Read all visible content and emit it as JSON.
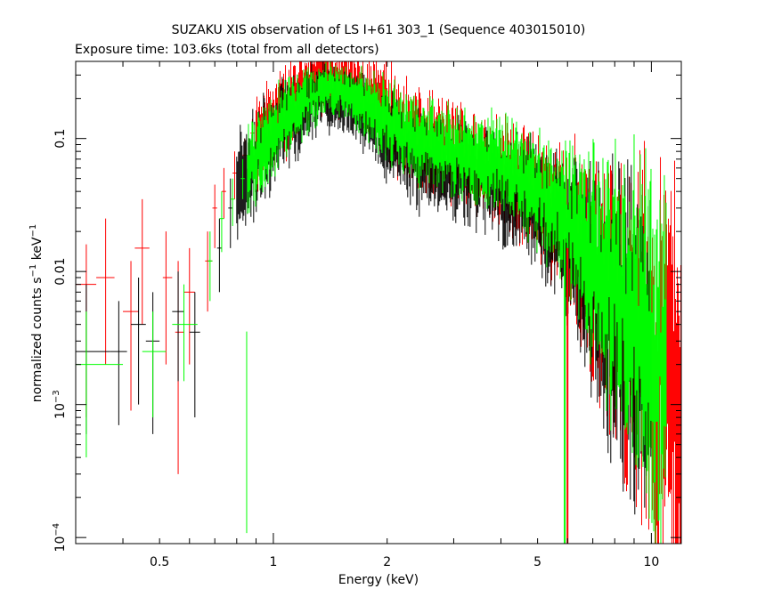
{
  "chart_data": {
    "type": "scatter",
    "title": "SUZAKU XIS observation of LS I+61 303_1 (Sequence 403015010)",
    "subtitle": "Exposure time: 103.6ks (total from all detectors)",
    "xlabel": "Energy (keV)",
    "ylabel": "normalized counts s",
    "ylabel_sup1": "−1",
    "ylabel_mid": " keV",
    "ylabel_sup2": "−1",
    "xscale": "log",
    "yscale": "log",
    "xlim": [
      0.3,
      12
    ],
    "ylim": [
      9e-05,
      0.38
    ],
    "grid": false,
    "legend": "none",
    "x_ticks": [
      {
        "value": 0.5,
        "label": "0.5"
      },
      {
        "value": 1,
        "label": "1"
      },
      {
        "value": 2,
        "label": "2"
      },
      {
        "value": 5,
        "label": "5"
      },
      {
        "value": 10,
        "label": "10"
      }
    ],
    "y_ticks": [
      {
        "value": 0.1,
        "label": "0.1"
      },
      {
        "value": 0.01,
        "label": "0.01"
      },
      {
        "value": 0.001,
        "label": "10",
        "sup": "−3"
      },
      {
        "value": 0.0001,
        "label": "10",
        "sup": "−4"
      }
    ],
    "series": [
      {
        "color": "#ff0000",
        "points": [
          {
            "x": 0.32,
            "y": 0.008,
            "xerr": [
              0.3,
              0.34
            ],
            "yerr": [
              0.0008,
              0.016
            ]
          },
          {
            "x": 0.36,
            "y": 0.009,
            "xerr": [
              0.34,
              0.38
            ],
            "yerr": [
              0.002,
              0.025
            ]
          },
          {
            "x": 0.42,
            "y": 0.005,
            "xerr": [
              0.4,
              0.44
            ],
            "yerr": [
              0.0009,
              0.012
            ]
          },
          {
            "x": 0.45,
            "y": 0.015,
            "xerr": [
              0.43,
              0.47
            ],
            "yerr": [
              0.004,
              0.035
            ]
          },
          {
            "x": 0.52,
            "y": 0.009,
            "xerr": [
              0.51,
              0.54
            ],
            "yerr": [
              0.002,
              0.02
            ]
          },
          {
            "x": 0.56,
            "y": 0.0035,
            "xerr": [
              0.55,
              0.58
            ],
            "yerr": [
              0.0003,
              0.012
            ]
          },
          {
            "x": 0.6,
            "y": 0.007,
            "xerr": [
              0.58,
              0.62
            ],
            "yerr": [
              0.002,
              0.015
            ]
          },
          {
            "x": 0.67,
            "y": 0.012,
            "xerr": [
              0.66,
              0.69
            ],
            "yerr": [
              0.005,
              0.02
            ]
          },
          {
            "x": 0.7,
            "y": 0.03,
            "xerr": [
              0.69,
              0.71
            ],
            "yerr": [
              0.015,
              0.045
            ]
          },
          {
            "x": 0.74,
            "y": 0.04,
            "xerr": [
              0.73,
              0.75
            ],
            "yerr": [
              0.025,
              0.06
            ]
          },
          {
            "x": 0.79,
            "y": 0.055,
            "xerr": [
              0.78,
              0.8
            ],
            "yerr": [
              0.035,
              0.08
            ]
          },
          {
            "x": 0.84,
            "y": 0.075,
            "xerr": [
              0.83,
              0.85
            ],
            "yerr": [
              0.05,
              0.1
            ]
          },
          {
            "x": 0.88,
            "y": 0.11,
            "xerr": [
              0.87,
              0.89
            ],
            "yerr": [
              0.07,
              0.14
            ]
          }
        ],
        "band": {
          "x": [
            0.9,
            1.0,
            1.1,
            1.2,
            1.3,
            1.4,
            1.5,
            1.6,
            1.7,
            1.8,
            2.0,
            2.2,
            2.5,
            3.0,
            3.5,
            4.0,
            4.5,
            5.0,
            5.5,
            6.0,
            6.5,
            7.0,
            7.5,
            8.0,
            9.0,
            10.0,
            11.0,
            12.0
          ],
          "y": [
            0.09,
            0.13,
            0.18,
            0.23,
            0.27,
            0.28,
            0.27,
            0.25,
            0.23,
            0.21,
            0.17,
            0.12,
            0.095,
            0.08,
            0.068,
            0.058,
            0.048,
            0.037,
            0.03,
            0.022,
            0.016,
            0.011,
            0.008,
            0.006,
            0.004,
            0.0025,
            0.0018,
            0.0015
          ],
          "spread": [
            0.28,
            0.3,
            0.28,
            0.25,
            0.22,
            0.22,
            0.22,
            0.22,
            0.25,
            0.28,
            0.3,
            0.3,
            0.3,
            0.3,
            0.3,
            0.32,
            0.35,
            0.38,
            0.42,
            0.5,
            0.6,
            0.7,
            0.8,
            0.9,
            1.0,
            1.1,
            1.2,
            1.3
          ]
        }
      },
      {
        "color": "#000000",
        "points": [
          {
            "x": 0.32,
            "y": 0.0025,
            "xerr": [
              0.3,
              0.37
            ],
            "yerr": [
              0.0006,
              0.008
            ]
          },
          {
            "x": 0.39,
            "y": 0.0025,
            "xerr": [
              0.37,
              0.41
            ],
            "yerr": [
              0.0007,
              0.006
            ]
          },
          {
            "x": 0.44,
            "y": 0.004,
            "xerr": [
              0.42,
              0.46
            ],
            "yerr": [
              0.001,
              0.009
            ]
          },
          {
            "x": 0.48,
            "y": 0.003,
            "xerr": [
              0.46,
              0.5
            ],
            "yerr": [
              0.0006,
              0.007
            ]
          },
          {
            "x": 0.56,
            "y": 0.005,
            "xerr": [
              0.54,
              0.58
            ],
            "yerr": [
              0.0015,
              0.01
            ]
          },
          {
            "x": 0.62,
            "y": 0.0035,
            "xerr": [
              0.6,
              0.64
            ],
            "yerr": [
              0.0008,
              0.007
            ]
          },
          {
            "x": 0.72,
            "y": 0.015,
            "xerr": [
              0.71,
              0.73
            ],
            "yerr": [
              0.007,
              0.025
            ]
          },
          {
            "x": 0.77,
            "y": 0.03,
            "xerr": [
              0.76,
              0.78
            ],
            "yerr": [
              0.015,
              0.05
            ]
          }
        ],
        "band": {
          "x": [
            0.8,
            0.9,
            1.0,
            1.1,
            1.2,
            1.3,
            1.4,
            1.5,
            1.6,
            1.7,
            1.8,
            2.0,
            2.2,
            2.5,
            3.0,
            3.5,
            4.0,
            4.5,
            5.0,
            5.5,
            6.0,
            6.5,
            7.0,
            7.5,
            8.0,
            9.0,
            10.0
          ],
          "y": [
            0.04,
            0.07,
            0.1,
            0.14,
            0.17,
            0.2,
            0.21,
            0.2,
            0.18,
            0.16,
            0.14,
            0.11,
            0.085,
            0.07,
            0.06,
            0.052,
            0.045,
            0.038,
            0.03,
            0.025,
            0.018,
            0.013,
            0.009,
            0.0065,
            0.005,
            0.0033,
            0.0022
          ],
          "spread": [
            0.35,
            0.32,
            0.3,
            0.28,
            0.25,
            0.22,
            0.2,
            0.2,
            0.22,
            0.24,
            0.26,
            0.28,
            0.3,
            0.3,
            0.3,
            0.3,
            0.32,
            0.35,
            0.38,
            0.42,
            0.5,
            0.6,
            0.7,
            0.8,
            0.9,
            1.0,
            1.1
          ]
        }
      },
      {
        "color": "#00ff00",
        "points": [
          {
            "x": 0.32,
            "y": 0.002,
            "xerr": [
              0.3,
              0.4
            ],
            "yerr": [
              0.0004,
              0.005
            ]
          },
          {
            "x": 0.48,
            "y": 0.0025,
            "xerr": [
              0.45,
              0.52
            ],
            "yerr": [
              0.0008,
              0.005
            ]
          },
          {
            "x": 0.58,
            "y": 0.004,
            "xerr": [
              0.54,
              0.63
            ],
            "yerr": [
              0.0015,
              0.008
            ]
          },
          {
            "x": 0.68,
            "y": 0.012,
            "xerr": [
              0.67,
              0.69
            ],
            "yerr": [
              0.006,
              0.02
            ]
          },
          {
            "x": 0.73,
            "y": 0.025,
            "xerr": [
              0.72,
              0.74
            ],
            "yerr": [
              0.014,
              0.04
            ]
          },
          {
            "x": 0.78,
            "y": 0.035,
            "xerr": [
              0.77,
              0.79
            ],
            "yerr": [
              0.022,
              0.05
            ]
          },
          {
            "x": 0.83,
            "y": 0.05,
            "xerr": [
              0.82,
              0.84
            ],
            "yerr": [
              0.035,
              0.07
            ]
          }
        ],
        "band": {
          "x": [
            0.85,
            0.95,
            1.0,
            1.1,
            1.2,
            1.3,
            1.4,
            1.5,
            1.6,
            1.7,
            1.8,
            2.0,
            2.2,
            2.5,
            3.0,
            3.5,
            4.0,
            4.5,
            5.0,
            5.5,
            6.0,
            6.5,
            7.0,
            7.5,
            8.0,
            9.0,
            10.0,
            11.0
          ],
          "y": [
            0.06,
            0.09,
            0.11,
            0.15,
            0.19,
            0.22,
            0.24,
            0.24,
            0.22,
            0.2,
            0.18,
            0.14,
            0.11,
            0.095,
            0.082,
            0.072,
            0.063,
            0.054,
            0.043,
            0.034,
            0.025,
            0.018,
            0.013,
            0.0095,
            0.0072,
            0.0048,
            0.0032,
            0.0025
          ],
          "spread": [
            0.3,
            0.28,
            0.26,
            0.24,
            0.2,
            0.18,
            0.16,
            0.16,
            0.18,
            0.2,
            0.22,
            0.24,
            0.26,
            0.26,
            0.26,
            0.28,
            0.3,
            0.32,
            0.35,
            0.4,
            0.45,
            0.55,
            0.65,
            0.75,
            0.85,
            0.95,
            1.05,
            1.15
          ]
        }
      }
    ],
    "features": [
      {
        "x": 5.9,
        "y_low": 9e-05,
        "y_high": 0.02,
        "color": "#00ff00"
      },
      {
        "x": 6.0,
        "y_low": 9e-05,
        "y_high": 0.015,
        "color": "#ff0000"
      }
    ]
  }
}
